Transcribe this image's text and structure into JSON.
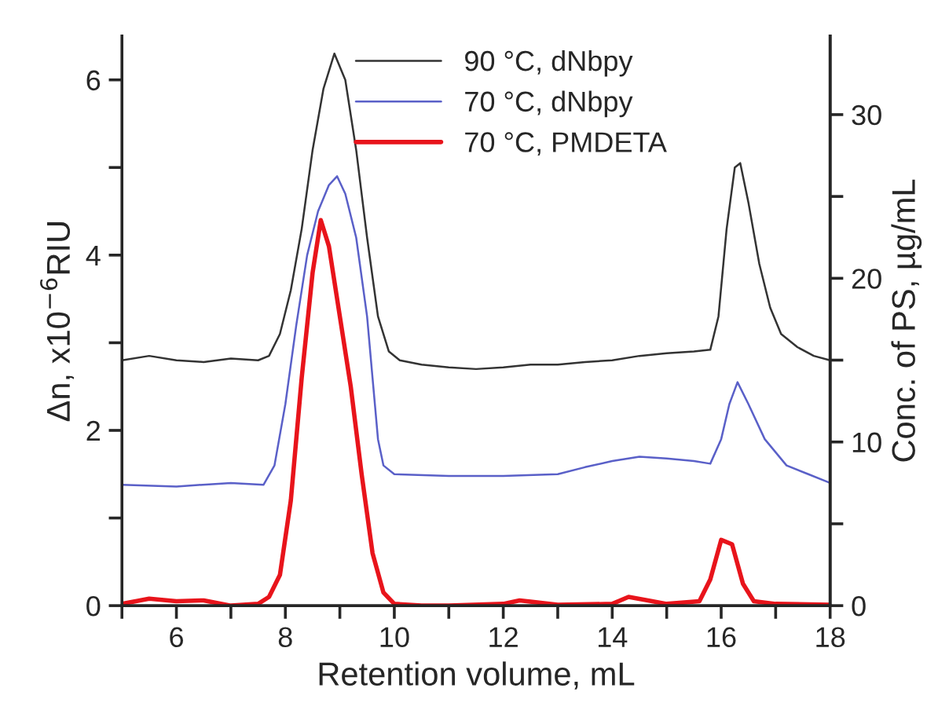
{
  "chart_data": {
    "type": "line",
    "xlabel": "Retention volume, mL",
    "ylabel": "Δn, x10$^{−6}$RIU",
    "y2label": "Conc. of PS, µg/mL",
    "xlim": [
      5,
      18
    ],
    "xticks": [
      {
        "value": 5,
        "label": null
      },
      6,
      {
        "value": 7,
        "label": null
      },
      8,
      {
        "value": 9,
        "label": null
      },
      10,
      {
        "value": 11,
        "label": null
      },
      12,
      {
        "value": 13,
        "label": null
      },
      14,
      {
        "value": 15,
        "label": null
      },
      16,
      {
        "value": 17,
        "label": null
      },
      18
    ],
    "ylim": [
      0,
      6.5
    ],
    "yticks": [
      0,
      {
        "value": 1,
        "label": null
      },
      2,
      {
        "value": 3,
        "label": null
      },
      4,
      {
        "value": 5,
        "label": null
      },
      6
    ],
    "y2lim": [
      0,
      34.8
    ],
    "y2ticks": [
      0,
      {
        "value": 5,
        "label": null
      },
      10,
      {
        "value": 15,
        "label": null
      },
      20,
      {
        "value": 25,
        "label": null
      },
      30
    ],
    "legend": "top",
    "grid": false,
    "line_style": "solid",
    "series": [
      {
        "name": "90 °C, dNbpy",
        "color": "#333333",
        "x": [
          5,
          5.5,
          6,
          6.5,
          7,
          7.5,
          7.7,
          7.9,
          8.1,
          8.3,
          8.5,
          8.7,
          8.9,
          9.1,
          9.3,
          9.5,
          9.7,
          9.9,
          10.1,
          10.5,
          11,
          11.5,
          12,
          12.5,
          13,
          13.5,
          14,
          14.5,
          15,
          15.5,
          15.8,
          15.95,
          16.1,
          16.25,
          16.35,
          16.5,
          16.7,
          16.9,
          17.1,
          17.4,
          17.7,
          18
        ],
        "values": [
          2.8,
          2.85,
          2.8,
          2.78,
          2.82,
          2.8,
          2.85,
          3.1,
          3.6,
          4.3,
          5.2,
          5.9,
          6.3,
          6.0,
          5.2,
          4.2,
          3.3,
          2.9,
          2.8,
          2.75,
          2.72,
          2.7,
          2.72,
          2.75,
          2.75,
          2.78,
          2.8,
          2.85,
          2.88,
          2.9,
          2.92,
          3.3,
          4.3,
          5.0,
          5.05,
          4.6,
          3.9,
          3.4,
          3.1,
          2.95,
          2.85,
          2.8
        ]
      },
      {
        "name": "70 °C, dNbpy",
        "color": "#5a60c8",
        "x": [
          5,
          6,
          7,
          7.6,
          7.8,
          8.0,
          8.2,
          8.4,
          8.6,
          8.8,
          8.95,
          9.1,
          9.3,
          9.5,
          9.6,
          9.7,
          9.8,
          10,
          11,
          12,
          13,
          13.5,
          14,
          14.5,
          15,
          15.5,
          15.8,
          16.0,
          16.15,
          16.3,
          16.5,
          16.8,
          17.2,
          17.6,
          18
        ],
        "values": [
          1.38,
          1.36,
          1.4,
          1.38,
          1.6,
          2.3,
          3.2,
          4.0,
          4.5,
          4.8,
          4.9,
          4.7,
          4.2,
          3.3,
          2.6,
          1.9,
          1.6,
          1.5,
          1.48,
          1.48,
          1.5,
          1.58,
          1.65,
          1.7,
          1.68,
          1.65,
          1.62,
          1.9,
          2.3,
          2.55,
          2.3,
          1.9,
          1.6,
          1.5,
          1.4
        ]
      },
      {
        "name": "70 °C, PMDETA",
        "color": "#e8141b",
        "x": [
          5,
          5.5,
          6,
          6.5,
          7,
          7.5,
          7.7,
          7.9,
          8.1,
          8.3,
          8.5,
          8.65,
          8.8,
          9.0,
          9.2,
          9.4,
          9.6,
          9.8,
          10.0,
          10.5,
          11,
          12,
          12.3,
          13,
          14,
          14.3,
          15,
          15.6,
          15.8,
          16.0,
          16.2,
          16.4,
          16.6,
          17,
          18
        ],
        "values": [
          0.02,
          0.08,
          0.05,
          0.06,
          0.0,
          0.02,
          0.1,
          0.35,
          1.2,
          2.6,
          3.8,
          4.4,
          4.1,
          3.3,
          2.5,
          1.5,
          0.6,
          0.15,
          0.02,
          0.0,
          0.0,
          0.02,
          0.06,
          0.01,
          0.02,
          0.1,
          0.02,
          0.05,
          0.3,
          0.75,
          0.7,
          0.25,
          0.05,
          0.02,
          0.01
        ]
      }
    ]
  }
}
